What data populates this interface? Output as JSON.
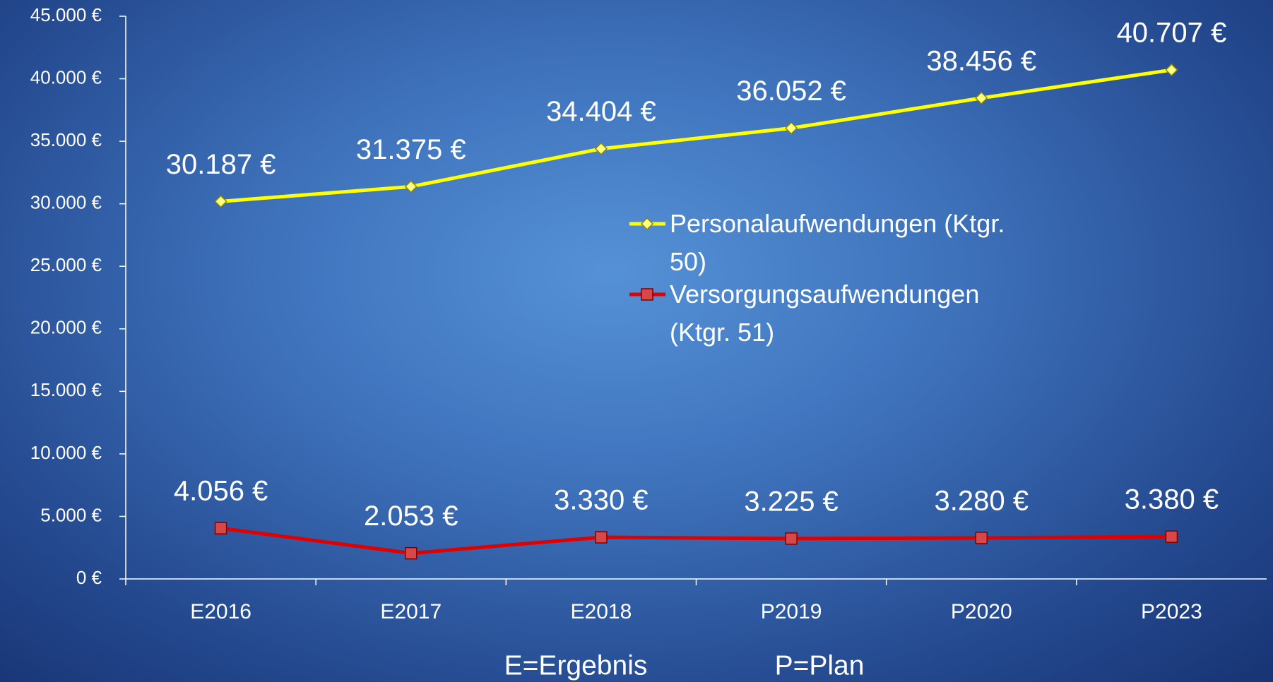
{
  "chart_data": {
    "type": "line",
    "categories": [
      "E2016",
      "E2017",
      "E2018",
      "P2019",
      "P2020",
      "P2023"
    ],
    "series": [
      {
        "name": "Personalaufwendungen (Ktgr. 50)",
        "color": "#ffff00",
        "marker": "diamond",
        "values": [
          30187,
          31375,
          34404,
          36052,
          38456,
          40707
        ],
        "value_labels": [
          "30.187 €",
          "31.375 €",
          "34.404 €",
          "36.052 €",
          "38.456 €",
          "40.707 €"
        ]
      },
      {
        "name": "Versorgungsaufwendungen (Ktgr. 51)",
        "color": "#e00000",
        "marker": "square",
        "values": [
          4056,
          2053,
          3330,
          3225,
          3280,
          3380
        ],
        "value_labels": [
          "4.056 €",
          "2.053 €",
          "3.330 €",
          "3.225 €",
          "3.280 €",
          "3.380 €"
        ]
      }
    ],
    "ylim": [
      0,
      45000
    ],
    "yticks": [
      {
        "value": 0,
        "label": "0 €"
      },
      {
        "value": 5000,
        "label": "5.000 €"
      },
      {
        "value": 10000,
        "label": "10.000 €"
      },
      {
        "value": 15000,
        "label": "15.000 €"
      },
      {
        "value": 20000,
        "label": "20.000 €"
      },
      {
        "value": 25000,
        "label": "25.000 €"
      },
      {
        "value": 30000,
        "label": "30.000 €"
      },
      {
        "value": 35000,
        "label": "35.000 €"
      },
      {
        "value": 40000,
        "label": "40.000 €"
      },
      {
        "value": 45000,
        "label": "45.000 €"
      }
    ],
    "notes": [
      "E=Ergebnis",
      "P=Plan"
    ]
  }
}
